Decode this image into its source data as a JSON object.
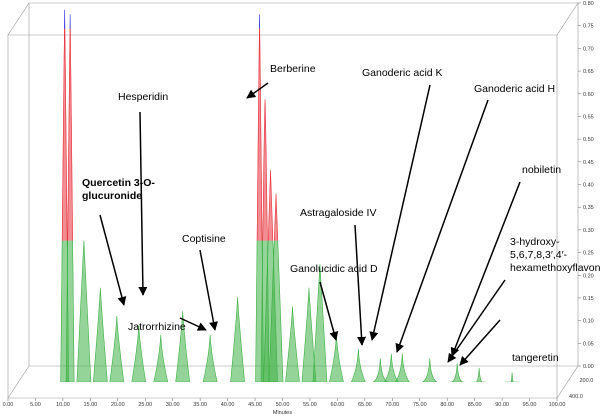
{
  "chart_data": {
    "type": "waterfall",
    "x_label": "Minutes",
    "xlim": [
      0,
      100
    ],
    "xticks": [
      {
        "value": 0,
        "label": "0.00"
      },
      {
        "value": 5,
        "label": "5.00"
      },
      {
        "value": 10,
        "label": "10.00"
      },
      {
        "value": 15,
        "label": "15.00"
      },
      {
        "value": 20,
        "label": "20.00"
      },
      {
        "value": 25,
        "label": "25.00"
      },
      {
        "value": 30,
        "label": "30.00"
      },
      {
        "value": 35,
        "label": "35.00"
      },
      {
        "value": 40,
        "label": "40.00"
      },
      {
        "value": 45,
        "label": "45.00"
      },
      {
        "value": 50,
        "label": "50.00"
      },
      {
        "value": 55,
        "label": "55.00"
      },
      {
        "value": 60,
        "label": "60.00"
      },
      {
        "value": 65,
        "label": "65.00"
      },
      {
        "value": 70,
        "label": "70.00"
      },
      {
        "value": 75,
        "label": "75.00"
      },
      {
        "value": 80,
        "label": "80.00"
      },
      {
        "value": 85,
        "label": "85.00"
      },
      {
        "value": 90,
        "label": "90.00"
      },
      {
        "value": 95,
        "label": "95.00"
      },
      {
        "value": 100,
        "label": "100.00"
      }
    ],
    "ylim": [
      0,
      0.8
    ],
    "yticks": [
      {
        "value": 0,
        "label": "0.00"
      },
      {
        "value": 0.05,
        "label": "0.05"
      },
      {
        "value": 0.1,
        "label": "0.10"
      },
      {
        "value": 0.15,
        "label": "0.15"
      },
      {
        "value": 0.2,
        "label": "0.20"
      },
      {
        "value": 0.25,
        "label": "0.25"
      },
      {
        "value": 0.3,
        "label": "0.30"
      },
      {
        "value": 0.35,
        "label": "0.35"
      },
      {
        "value": 0.4,
        "label": "0.40"
      },
      {
        "value": 0.45,
        "label": "0.45"
      },
      {
        "value": 0.5,
        "label": "0.50"
      },
      {
        "value": 0.55,
        "label": "0.55"
      },
      {
        "value": 0.6,
        "label": "0.60"
      },
      {
        "value": 0.65,
        "label": "0.65"
      },
      {
        "value": 0.7,
        "label": "0.70"
      },
      {
        "value": 0.75,
        "label": "0.75"
      },
      {
        "value": 0.8,
        "label": "0.80"
      }
    ],
    "depth_ticks": [
      {
        "value": 200,
        "label": "200.0"
      },
      {
        "value": 400,
        "label": "400.0"
      }
    ],
    "x": [
      8.5,
      9.5,
      12,
      15,
      18,
      22,
      26,
      30,
      35,
      40,
      44,
      45,
      46,
      47,
      50,
      53,
      55,
      58,
      62,
      66,
      68,
      70,
      75,
      80,
      84,
      90
    ],
    "values": [
      0.79,
      0.78,
      0.3,
      0.2,
      0.14,
      0.12,
      0.1,
      0.15,
      0.1,
      0.18,
      0.78,
      0.6,
      0.45,
      0.4,
      0.16,
      0.2,
      0.25,
      0.1,
      0.07,
      0.05,
      0.06,
      0.06,
      0.05,
      0.04,
      0.03,
      0.02
    ],
    "colors": {
      "low": "#3cb043",
      "mid": "#e8303a",
      "high": "#2a2ae0"
    },
    "color_bands": [
      0.3,
      0.75
    ],
    "annotations": [
      {
        "lines": [
          "Hesperidin"
        ]
      },
      {
        "lines": [
          "Berberine"
        ]
      },
      {
        "lines": [
          "Ganoderic acid K"
        ]
      },
      {
        "lines": [
          "Ganoderic acid H"
        ]
      },
      {
        "lines": [
          "Quercetin 3-O-",
          "glucuronide"
        ]
      },
      {
        "lines": [
          "Astragaloside IV"
        ]
      },
      {
        "lines": [
          "nobiletin"
        ]
      },
      {
        "lines": [
          "Coptisine"
        ]
      },
      {
        "lines": [
          "3-hydroxy-",
          "5,6,7,8,3′,4′-",
          "hexamethoxyflavone"
        ]
      },
      {
        "lines": [
          "Ganolucidic acid D"
        ]
      },
      {
        "lines": [
          "Jatrorrhizine"
        ]
      },
      {
        "lines": [
          "tangeretin"
        ]
      }
    ]
  }
}
